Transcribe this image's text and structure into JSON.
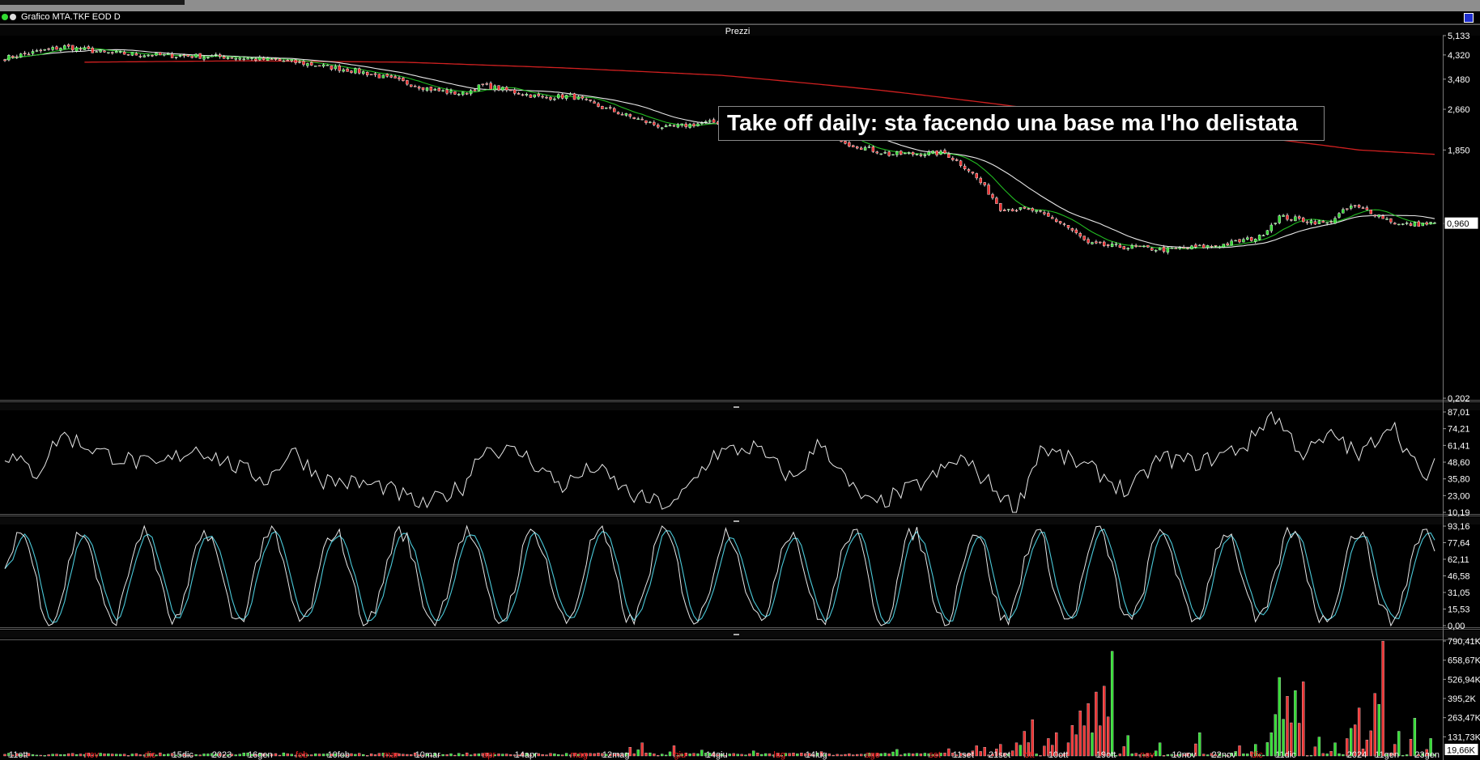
{
  "window": {
    "title": "Grafico MTA.TKF EOD D"
  },
  "annotation": {
    "text": "Take off daily: sta facendo una base ma l'ho delistata"
  },
  "colors": {
    "background": "#000000",
    "up": "#33dd33",
    "down": "#ee3333",
    "ma_fast": "#22bb22",
    "ma_medium": "#e8e8e8",
    "ma_slow": "#d02020",
    "stoch_signal": "#4ac8d8"
  },
  "chart_data": [
    {
      "type": "candlestick",
      "title": "Prezzi",
      "scale": "log",
      "ylim": [
        0.202,
        5.133
      ],
      "yticks": [
        "5,133",
        "4,320",
        "3,480",
        "2,660",
        "1,850",
        "0,960",
        "0,202"
      ],
      "last_value": "0,960",
      "last_value_y": 0.96,
      "ytick_values": [
        5.133,
        4.32,
        3.48,
        2.66,
        1.85,
        0.96,
        0.202
      ],
      "x_labels": [
        {
          "i": 1,
          "label": "11ott"
        },
        {
          "i": 20,
          "label": "nov"
        },
        {
          "i": 35,
          "label": "dic"
        },
        {
          "i": 42,
          "label": "15dic"
        },
        {
          "i": 52,
          "label": "2023"
        },
        {
          "i": 61,
          "label": "16gen"
        },
        {
          "i": 73,
          "label": "feb"
        },
        {
          "i": 81,
          "label": "10feb"
        },
        {
          "i": 95,
          "label": "mar"
        },
        {
          "i": 103,
          "label": "10mar"
        },
        {
          "i": 120,
          "label": "apr"
        },
        {
          "i": 128,
          "label": "14apr"
        },
        {
          "i": 142,
          "label": "mag"
        },
        {
          "i": 150,
          "label": "12mag"
        },
        {
          "i": 168,
          "label": "giu"
        },
        {
          "i": 176,
          "label": "14giu"
        },
        {
          "i": 193,
          "label": "lug"
        },
        {
          "i": 201,
          "label": "14lug"
        },
        {
          "i": 216,
          "label": "ago"
        },
        {
          "i": 232,
          "label": "set"
        },
        {
          "i": 238,
          "label": "11set"
        },
        {
          "i": 247,
          "label": "21set"
        },
        {
          "i": 256,
          "label": "ott"
        },
        {
          "i": 262,
          "label": "10ott"
        },
        {
          "i": 274,
          "label": "19ott"
        },
        {
          "i": 285,
          "label": "nov"
        },
        {
          "i": 293,
          "label": "10nov"
        },
        {
          "i": 303,
          "label": "22nov"
        },
        {
          "i": 313,
          "label": "dic"
        },
        {
          "i": 319,
          "label": "11dic"
        },
        {
          "i": 337,
          "label": "2024"
        },
        {
          "i": 344,
          "label": "11gen"
        },
        {
          "i": 354,
          "label": "23gen"
        }
      ],
      "x_label_red": [
        "nov",
        "dic",
        "feb",
        "mar",
        "apr",
        "mag",
        "giu",
        "lug",
        "ago",
        "set",
        "ott",
        "nov",
        "dic"
      ],
      "n_bars": 360,
      "price_anchors": [
        [
          0,
          4.2
        ],
        [
          15,
          4.65
        ],
        [
          25,
          4.4
        ],
        [
          40,
          4.3
        ],
        [
          55,
          4.25
        ],
        [
          70,
          4.1
        ],
        [
          78,
          3.95
        ],
        [
          90,
          3.7
        ],
        [
          98,
          3.45
        ],
        [
          108,
          3.15
        ],
        [
          115,
          3.05
        ],
        [
          120,
          3.3
        ],
        [
          128,
          3.1
        ],
        [
          135,
          2.95
        ],
        [
          142,
          3.0
        ],
        [
          150,
          2.7
        ],
        [
          160,
          2.4
        ],
        [
          166,
          2.25
        ],
        [
          175,
          2.35
        ],
        [
          185,
          2.4
        ],
        [
          195,
          2.35
        ],
        [
          205,
          2.25
        ],
        [
          212,
          1.95
        ],
        [
          222,
          1.78
        ],
        [
          236,
          1.8
        ],
        [
          242,
          1.55
        ],
        [
          250,
          1.1
        ],
        [
          258,
          1.08
        ],
        [
          266,
          0.95
        ],
        [
          272,
          0.8
        ],
        [
          280,
          0.78
        ],
        [
          292,
          0.76
        ],
        [
          305,
          0.79
        ],
        [
          315,
          0.85
        ],
        [
          320,
          1.02
        ],
        [
          332,
          0.96
        ],
        [
          338,
          1.12
        ],
        [
          342,
          1.08
        ],
        [
          350,
          0.95
        ],
        [
          359,
          0.96
        ]
      ],
      "series": [
        {
          "name": "",
          "type": "ma",
          "period": 10
        },
        {
          "name": "",
          "type": "ma",
          "period": 21
        },
        {
          "name": "",
          "type": "ma",
          "period": 200
        }
      ]
    },
    {
      "type": "line",
      "title": "",
      "ylim": [
        10.19,
        87.01
      ],
      "yticks": [
        "87,01",
        "74,21",
        "61,41",
        "48,60",
        "35,80",
        "23,00",
        "10,19"
      ],
      "anchors": [
        [
          0,
          55
        ],
        [
          8,
          40
        ],
        [
          14,
          70
        ],
        [
          25,
          55
        ],
        [
          38,
          45
        ],
        [
          48,
          60
        ],
        [
          58,
          45
        ],
        [
          66,
          35
        ],
        [
          72,
          58
        ],
        [
          80,
          35
        ],
        [
          95,
          30
        ],
        [
          105,
          15
        ],
        [
          115,
          30
        ],
        [
          120,
          60
        ],
        [
          130,
          55
        ],
        [
          140,
          30
        ],
        [
          148,
          45
        ],
        [
          158,
          22
        ],
        [
          168,
          15
        ],
        [
          178,
          55
        ],
        [
          188,
          60
        ],
        [
          198,
          35
        ],
        [
          205,
          65
        ],
        [
          212,
          30
        ],
        [
          218,
          15
        ],
        [
          232,
          35
        ],
        [
          240,
          52
        ],
        [
          248,
          30
        ],
        [
          254,
          12
        ],
        [
          260,
          60
        ],
        [
          275,
          40
        ],
        [
          282,
          25
        ],
        [
          290,
          52
        ],
        [
          300,
          48
        ],
        [
          312,
          62
        ],
        [
          318,
          87
        ],
        [
          326,
          55
        ],
        [
          334,
          70
        ],
        [
          340,
          52
        ],
        [
          348,
          80
        ],
        [
          356,
          35
        ],
        [
          360,
          50
        ]
      ]
    },
    {
      "type": "line",
      "title": "",
      "ylim": [
        0.0,
        93.16
      ],
      "yticks": [
        "93,16",
        "77,64",
        "62,11",
        "46,58",
        "31,05",
        "15,53",
        "0,00"
      ],
      "period_bars": 16,
      "series": [
        {
          "name": "",
          "role": "k"
        },
        {
          "name": "",
          "role": "d"
        }
      ]
    },
    {
      "type": "bar",
      "title": "",
      "ylim": [
        0,
        790.41
      ],
      "yticks": [
        "790,41K",
        "658,67K",
        "526,94K",
        "395,2K",
        "263,47K",
        "131,73K"
      ],
      "last_value": "19,66K",
      "last_value_y": 19.66,
      "ytick_values": [
        790.41,
        658.67,
        526.94,
        395.2,
        263.47,
        131.73
      ],
      "peaks": [
        [
          157,
          60
        ],
        [
          160,
          90
        ],
        [
          168,
          70
        ],
        [
          175,
          40
        ],
        [
          188,
          35
        ],
        [
          205,
          30
        ],
        [
          224,
          45
        ],
        [
          237,
          50
        ],
        [
          244,
          70
        ],
        [
          246,
          60
        ],
        [
          250,
          80
        ],
        [
          254,
          90
        ],
        [
          256,
          170
        ],
        [
          258,
          250
        ],
        [
          262,
          120
        ],
        [
          264,
          160
        ],
        [
          268,
          210
        ],
        [
          270,
          310
        ],
        [
          272,
          360
        ],
        [
          274,
          440
        ],
        [
          276,
          480
        ],
        [
          278,
          720
        ],
        [
          282,
          140
        ],
        [
          290,
          90
        ],
        [
          300,
          160
        ],
        [
          310,
          70
        ],
        [
          314,
          80
        ],
        [
          318,
          160
        ],
        [
          320,
          540
        ],
        [
          322,
          410
        ],
        [
          324,
          450
        ],
        [
          326,
          510
        ],
        [
          330,
          130
        ],
        [
          334,
          90
        ],
        [
          338,
          190
        ],
        [
          340,
          330
        ],
        [
          342,
          110
        ],
        [
          344,
          430
        ],
        [
          346,
          790
        ],
        [
          350,
          170
        ],
        [
          354,
          260
        ],
        [
          358,
          120
        ]
      ]
    }
  ]
}
